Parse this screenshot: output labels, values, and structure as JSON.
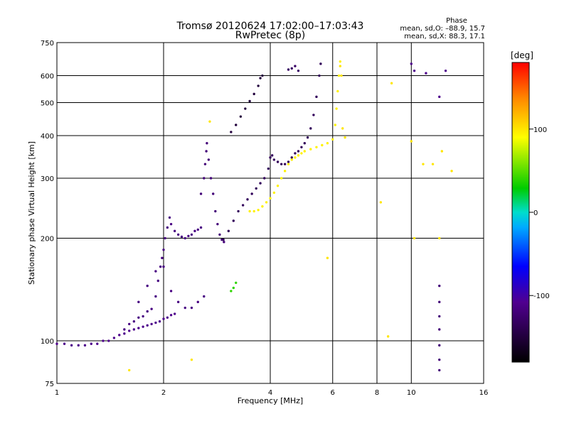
{
  "chart_data": {
    "type": "scatter",
    "title": "Tromsø 20120624 17:02:00–17:03:43",
    "subtitle": "RwPretec (8p)",
    "xlabel": "Frequency [MHz]",
    "ylabel": "Stationary phase Virtual Height [km]",
    "x_scale": "log",
    "y_scale": "log",
    "xlim": [
      1,
      16
    ],
    "ylim": [
      75,
      750
    ],
    "x_ticks": [
      1,
      2,
      4,
      6,
      8,
      10,
      16
    ],
    "y_ticks": [
      75,
      100,
      200,
      300,
      400,
      500,
      600,
      750
    ],
    "grid": true,
    "stats": {
      "heading": "Phase",
      "line_o": "mean, sd,O: –88.9, 15.7",
      "line_x": "mean, sd,X: 88.3, 17.1"
    },
    "colorbar": {
      "label": "[deg]",
      "range": [
        -180,
        180
      ],
      "ticks": [
        100,
        0,
        -100
      ]
    },
    "traces": [
      {
        "name": "",
        "phase": -110,
        "points": [
          [
            1.0,
            98
          ],
          [
            1.05,
            98
          ],
          [
            1.1,
            97
          ],
          [
            1.15,
            97
          ],
          [
            1.2,
            97
          ],
          [
            1.25,
            98
          ],
          [
            1.3,
            98
          ],
          [
            1.35,
            100
          ],
          [
            1.4,
            100
          ],
          [
            1.45,
            102
          ],
          [
            1.5,
            104
          ],
          [
            1.55,
            105
          ],
          [
            1.6,
            107
          ],
          [
            1.65,
            108
          ],
          [
            1.7,
            109
          ],
          [
            1.75,
            110
          ],
          [
            1.8,
            111
          ],
          [
            1.85,
            112
          ],
          [
            1.9,
            113
          ],
          [
            1.95,
            114
          ],
          [
            2.0,
            116
          ],
          [
            2.05,
            117
          ],
          [
            2.1,
            119
          ],
          [
            2.15,
            120
          ]
        ]
      },
      {
        "name": "",
        "phase": -115,
        "points": [
          [
            1.55,
            108
          ],
          [
            1.6,
            112
          ],
          [
            1.65,
            114
          ],
          [
            1.7,
            117
          ],
          [
            1.75,
            118
          ],
          [
            1.8,
            122
          ],
          [
            1.85,
            124
          ],
          [
            1.9,
            135
          ],
          [
            1.93,
            150
          ],
          [
            1.96,
            165
          ],
          [
            1.98,
            175
          ],
          [
            2.0,
            185
          ],
          [
            2.02,
            200
          ],
          [
            2.05,
            215
          ],
          [
            2.08,
            230
          ],
          [
            2.1,
            220
          ],
          [
            2.15,
            210
          ],
          [
            2.2,
            205
          ],
          [
            2.25,
            202
          ],
          [
            2.3,
            200
          ],
          [
            2.35,
            203
          ],
          [
            2.4,
            205
          ],
          [
            2.45,
            210
          ],
          [
            2.5,
            212
          ],
          [
            2.55,
            215
          ]
        ]
      },
      {
        "name": "",
        "phase": -120,
        "points": [
          [
            2.55,
            270
          ],
          [
            2.6,
            300
          ],
          [
            2.62,
            330
          ],
          [
            2.64,
            360
          ],
          [
            2.65,
            380
          ],
          [
            2.68,
            340
          ],
          [
            2.72,
            300
          ],
          [
            2.76,
            270
          ],
          [
            2.8,
            240
          ],
          [
            2.84,
            220
          ],
          [
            2.88,
            205
          ],
          [
            2.92,
            198
          ],
          [
            2.96,
            195
          ]
        ]
      },
      {
        "name": "",
        "phase": -135,
        "points": [
          [
            2.95,
            198
          ],
          [
            3.05,
            210
          ],
          [
            3.15,
            225
          ],
          [
            3.25,
            240
          ],
          [
            3.35,
            250
          ],
          [
            3.45,
            260
          ],
          [
            3.55,
            270
          ],
          [
            3.65,
            280
          ],
          [
            3.75,
            290
          ],
          [
            3.85,
            300
          ],
          [
            3.95,
            320
          ],
          [
            4.0,
            345
          ],
          [
            4.05,
            350
          ],
          [
            4.1,
            340
          ],
          [
            4.2,
            335
          ],
          [
            4.3,
            330
          ],
          [
            4.4,
            330
          ],
          [
            4.5,
            335
          ],
          [
            4.6,
            345
          ],
          [
            4.7,
            355
          ],
          [
            4.8,
            360
          ],
          [
            4.9,
            370
          ],
          [
            5.0,
            380
          ],
          [
            5.1,
            395
          ],
          [
            5.2,
            420
          ],
          [
            5.3,
            460
          ],
          [
            5.4,
            520
          ],
          [
            5.5,
            600
          ],
          [
            5.55,
            650
          ]
        ]
      },
      {
        "name": "",
        "phase": 95,
        "points": [
          [
            3.5,
            240
          ],
          [
            3.6,
            240
          ],
          [
            3.7,
            242
          ],
          [
            3.8,
            248
          ],
          [
            3.9,
            255
          ],
          [
            4.0,
            262
          ],
          [
            4.1,
            272
          ],
          [
            4.2,
            285
          ],
          [
            4.3,
            300
          ],
          [
            4.4,
            315
          ],
          [
            4.5,
            330
          ],
          [
            4.6,
            340
          ],
          [
            4.7,
            345
          ],
          [
            4.8,
            350
          ],
          [
            4.9,
            355
          ],
          [
            5.0,
            360
          ],
          [
            5.2,
            365
          ],
          [
            5.4,
            370
          ],
          [
            5.6,
            375
          ],
          [
            5.8,
            380
          ],
          [
            6.0,
            390
          ],
          [
            6.1,
            430
          ],
          [
            6.15,
            480
          ],
          [
            6.2,
            540
          ],
          [
            6.25,
            600
          ],
          [
            6.3,
            660
          ]
        ]
      },
      {
        "name": "",
        "phase": -150,
        "points": [
          [
            3.1,
            410
          ],
          [
            3.2,
            430
          ],
          [
            3.3,
            455
          ],
          [
            3.4,
            480
          ],
          [
            3.5,
            505
          ],
          [
            3.6,
            530
          ],
          [
            3.7,
            560
          ],
          [
            3.75,
            590
          ],
          [
            3.8,
            600
          ]
        ]
      },
      {
        "name": "",
        "phase": -115,
        "points": [
          [
            1.7,
            130
          ],
          [
            1.8,
            145
          ],
          [
            1.9,
            160
          ],
          [
            2.0,
            165
          ],
          [
            2.1,
            140
          ],
          [
            2.2,
            130
          ],
          [
            2.3,
            125
          ],
          [
            2.4,
            125
          ],
          [
            2.5,
            130
          ],
          [
            2.6,
            135
          ]
        ]
      },
      {
        "name": "",
        "phase": -130,
        "points": [
          [
            4.5,
            625
          ],
          [
            4.6,
            630
          ],
          [
            4.7,
            640
          ],
          [
            4.8,
            620
          ]
        ]
      },
      {
        "name": "",
        "phase": -110,
        "points": [
          [
            10.0,
            650
          ],
          [
            10.2,
            620
          ],
          [
            11.0,
            610
          ],
          [
            12.0,
            520
          ],
          [
            12.5,
            620
          ]
        ]
      },
      {
        "name": "",
        "phase": 40,
        "points": [
          [
            3.1,
            140
          ],
          [
            3.15,
            143
          ],
          [
            3.2,
            148
          ]
        ]
      },
      {
        "name": "",
        "phase": -120,
        "points": [
          [
            12.0,
            145
          ],
          [
            12.0,
            130
          ],
          [
            12.0,
            118
          ],
          [
            12.0,
            108
          ],
          [
            12.0,
            97
          ],
          [
            12.0,
            88
          ],
          [
            12.0,
            82
          ]
        ]
      },
      {
        "name": "",
        "phase": 100,
        "points": [
          [
            6.3,
            640
          ],
          [
            6.35,
            600
          ],
          [
            6.4,
            420
          ],
          [
            6.5,
            395
          ],
          [
            8.2,
            255
          ],
          [
            8.8,
            570
          ],
          [
            8.6,
            103
          ],
          [
            10.8,
            330
          ],
          [
            11.5,
            330
          ],
          [
            12.2,
            360
          ],
          [
            13.0,
            315
          ],
          [
            10.0,
            385
          ],
          [
            12.0,
            200
          ],
          [
            10.2,
            200
          ],
          [
            1.6,
            82
          ],
          [
            2.7,
            440
          ],
          [
            5.8,
            175
          ],
          [
            2.4,
            88
          ]
        ]
      }
    ]
  }
}
